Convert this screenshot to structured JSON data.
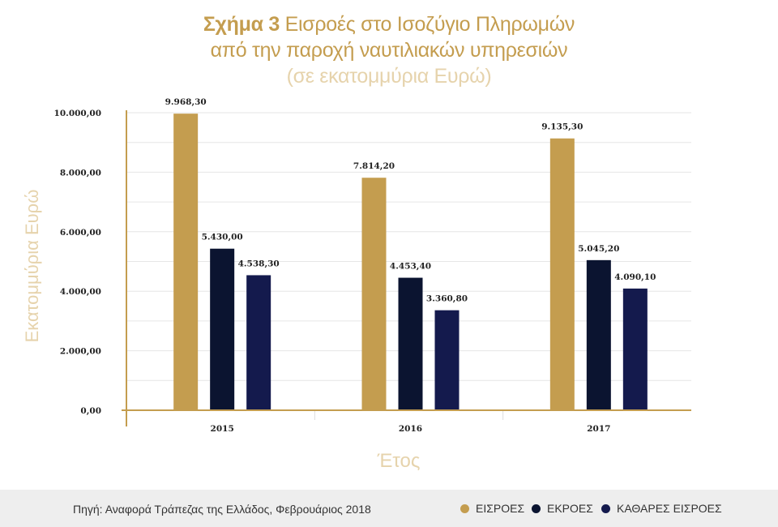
{
  "title": {
    "bold": "Σχήμα 3",
    "line1_rest": "Εισροές στο Ισοζύγιο Πληρωμών",
    "line2": "από την παροχή ναυτιλιακών υπηρεσιών",
    "line3": "(σε εκατομμύρια Ευρώ)"
  },
  "chart_data": {
    "type": "bar",
    "categories": [
      "2015",
      "2016",
      "2017"
    ],
    "series": [
      {
        "name": "ΕΙΣΡΟΕΣ",
        "values": [
          9968.3,
          7814.2,
          9135.3
        ],
        "labels": [
          "9.968,30",
          "7.814,20",
          "9.135,30"
        ],
        "color": "#c49d4f"
      },
      {
        "name": "ΕΚΡΟΕΣ",
        "values": [
          5430.0,
          4453.4,
          5045.2
        ],
        "labels": [
          "5.430,00",
          "4.453,40",
          "5.045,20"
        ],
        "color": "#0b1430"
      },
      {
        "name": "ΚΑΘΑΡΕΣ ΕΙΣΡΟΕΣ",
        "values": [
          4538.3,
          3360.8,
          4090.1
        ],
        "labels": [
          "4.538,30",
          "3.360,80",
          "4.090,10"
        ],
        "color": "#141a4d"
      }
    ],
    "ylim": [
      0,
      10000
    ],
    "yticks": [
      0,
      2000,
      4000,
      6000,
      8000,
      10000
    ],
    "ytick_labels": [
      "0,00",
      "2.000,00",
      "4.000,00",
      "6.000,00",
      "8.000,00",
      "10.000,00"
    ],
    "xlabel": "Έτος",
    "ylabel": "Εκατομμύρια Ευρώ",
    "grid": true,
    "legend": "bottom-right"
  },
  "footer": {
    "source": "Πηγή: Αναφορά Τράπεζας της Ελλάδος, Φεβρουάριος 2018"
  },
  "colors": {
    "gold": "#c49d4f",
    "axis_label": "#e6d3ac",
    "grid": "#e6e6e6",
    "footer_bg": "#eeeeee"
  }
}
